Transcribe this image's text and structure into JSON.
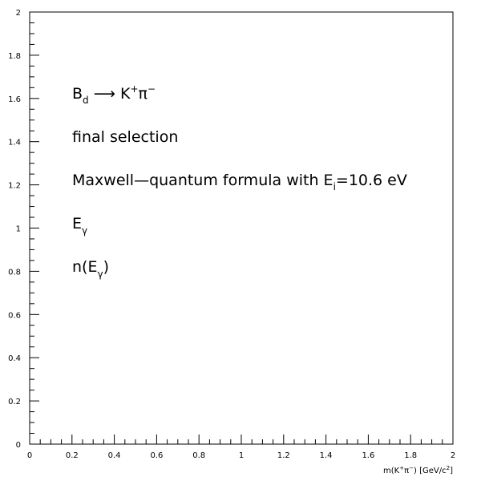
{
  "chart_data": {
    "type": "scatter",
    "title": "",
    "x_range": [
      0,
      2
    ],
    "y_range": [
      0,
      2
    ],
    "x_ticks": [
      "0",
      "0.2",
      "0.4",
      "0.6",
      "0.8",
      "1",
      "1.2",
      "1.4",
      "1.6",
      "1.8",
      "2"
    ],
    "y_ticks": [
      "0",
      "0.2",
      "0.4",
      "0.6",
      "0.8",
      "1",
      "1.2",
      "1.4",
      "1.6",
      "1.8",
      "2"
    ],
    "xlabel": {
      "main": "m(K",
      "sup1": "+",
      "pi": "π",
      "sup2": "−",
      "close": ")",
      "unit_open": " [GeV/c",
      "unit_sup": "2",
      "unit_close": "]"
    },
    "ylabel": "",
    "grid": false,
    "series": [],
    "annotations": {
      "decay": {
        "b": "B",
        "sub": "d",
        "arrow": " ⟶ K",
        "sup_plus": "+",
        "pi": "π",
        "sup_minus": "−"
      },
      "selection": "final selection",
      "formula": {
        "main": "Maxwell—quantum formula with E",
        "sub": "i",
        "rest": "=10.6 eV"
      },
      "e_gamma": {
        "e": "E",
        "sub": "γ"
      },
      "n_e_gamma": {
        "open": "n(E",
        "sub": "γ",
        "close": ")"
      }
    }
  }
}
